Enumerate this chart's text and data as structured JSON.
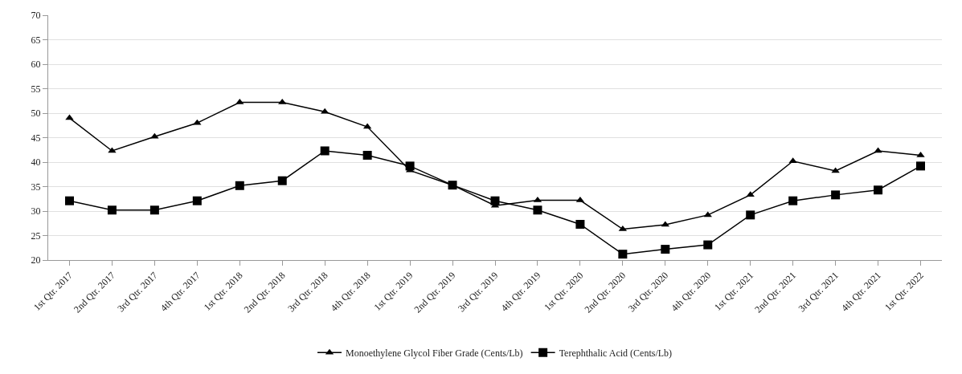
{
  "chart_data": {
    "type": "line",
    "categories": [
      "1st Qtr. 2017",
      "2nd Qtr. 2017",
      "3rd Qtr. 2017",
      "4th Qtr. 2017",
      "1st Qtr. 2018",
      "2nd Qtr. 2018",
      "3rd Qtr. 2018",
      "4th Qtr. 2018",
      "1st Qtr. 2019",
      "2nd Qtr. 2019",
      "3rd Qtr. 2019",
      "4th Qtr. 2019",
      "1st Qtr. 2020",
      "2nd Qtr. 2020",
      "3rd Qtr. 2020",
      "4th Qtr. 2020",
      "1st Qtr. 2021",
      "2nd Qtr. 2021",
      "3rd Qtr. 2021",
      "4th Qtr. 2021",
      "1st Qtr. 2022"
    ],
    "series": [
      {
        "name": "Monoethylene Glycol Fiber Grade (Cents/Lb)",
        "color": "#000000",
        "marker": "triangle",
        "values": [
          49,
          42.3,
          45.2,
          48,
          52.2,
          52.2,
          50.3,
          47.2,
          38.3,
          35.3,
          31.1,
          32.2,
          32.2,
          26.3,
          27.2,
          29.2,
          33.3,
          40.2,
          38.2,
          42.3,
          41.4
        ]
      },
      {
        "name": "Terephthalic Acid (Cents/Lb)",
        "color": "#000000",
        "marker": "square",
        "values": [
          32.1,
          30.2,
          30.2,
          32.1,
          35.2,
          36.2,
          42.3,
          41.4,
          39.2,
          35.3,
          32.1,
          30.2,
          27.3,
          21.2,
          22.2,
          23.1,
          29.2,
          32.1,
          33.3,
          34.3,
          39.2
        ]
      }
    ],
    "ylim": [
      20,
      70
    ],
    "yticks": [
      20,
      25,
      30,
      35,
      40,
      45,
      50,
      55,
      60,
      65,
      70
    ],
    "grid": "y",
    "legend": "bottom",
    "line_style": "solid"
  }
}
